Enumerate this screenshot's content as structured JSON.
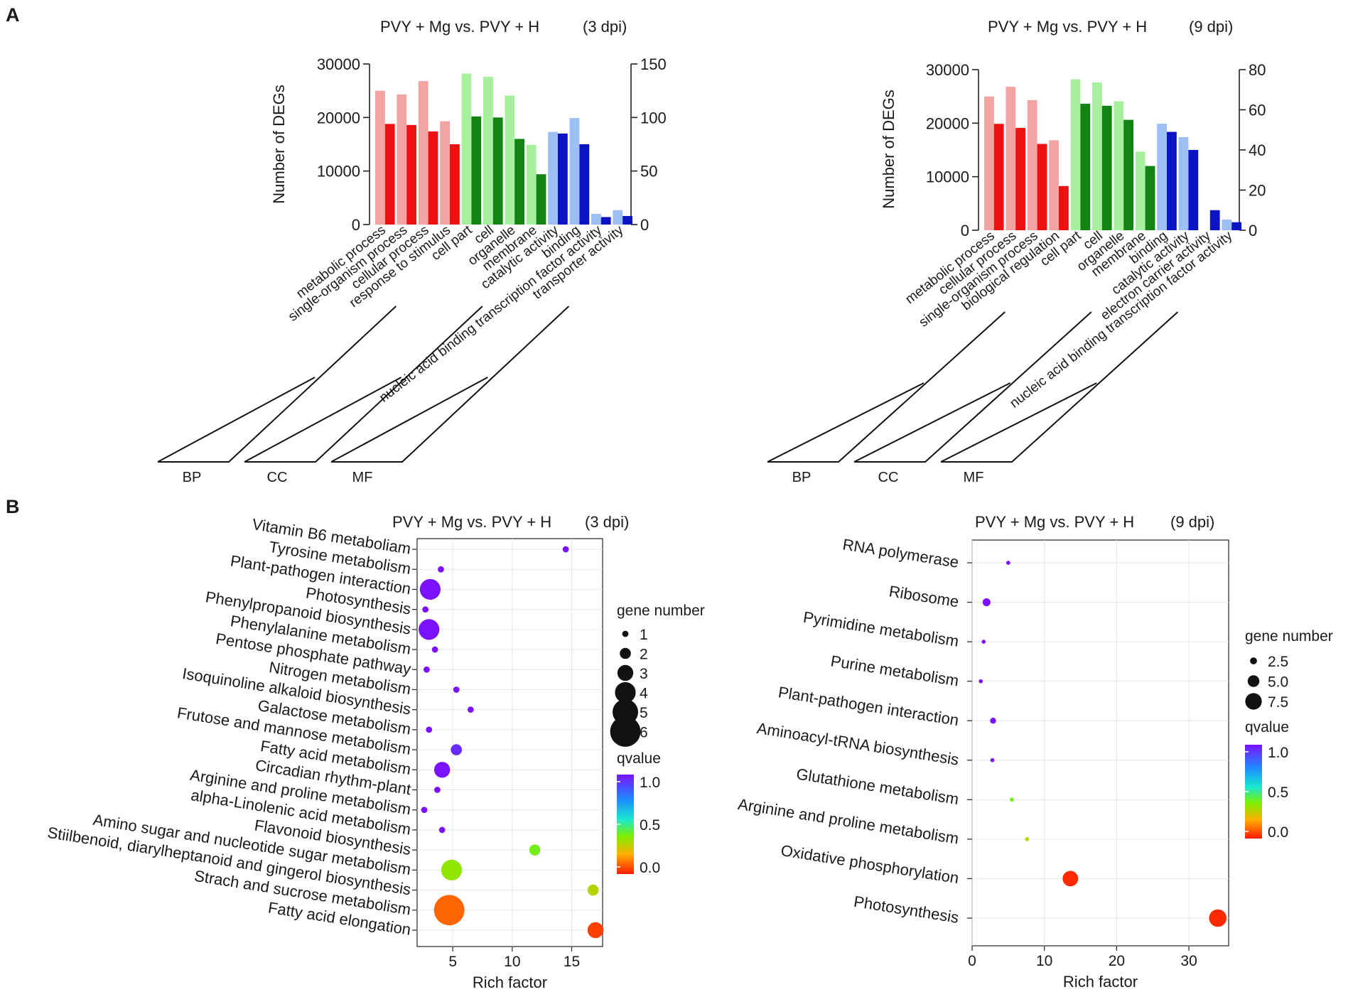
{
  "panel_labels": {
    "a": "A",
    "b": "B"
  },
  "chart_data": [
    {
      "id": "go3",
      "type": "bar",
      "title": "PVY + Mg vs. PVY + H",
      "subtitle": "(3 dpi)",
      "ylabel": "Number of DEGs",
      "ylim": [
        0,
        30000
      ],
      "yticks": [
        "0",
        "10000",
        "20000",
        "30000"
      ],
      "y2lim": [
        0,
        150
      ],
      "y2ticks": [
        "0",
        "50",
        "100",
        "150"
      ],
      "categories": [
        "metabolic process",
        "single-organism process",
        "cellular process",
        "response to stimulus",
        "cell part",
        "cell",
        "organelle",
        "membrane",
        "catalytic activity",
        "binding",
        "nucleic acid binding transcription factor activity",
        "transporter activity"
      ],
      "groups": [
        {
          "name": "BP",
          "count": 4,
          "light": "#f4a3a3",
          "dark": "#ee1111"
        },
        {
          "name": "CC",
          "count": 4,
          "light": "#a8f0a0",
          "dark": "#138313"
        },
        {
          "name": "MF",
          "count": 4,
          "light": "#9cc0f4",
          "dark": "#0b14c4"
        }
      ],
      "series": [
        {
          "name": "all genes (left axis)",
          "values": [
            25000,
            24300,
            26800,
            19300,
            28200,
            27600,
            24100,
            14900,
            17300,
            19900,
            2000,
            2700
          ]
        },
        {
          "name": "DEGs (right axis)",
          "values": [
            94,
            93,
            87,
            75,
            101,
            100,
            80,
            47,
            85,
            75,
            7,
            8
          ]
        }
      ]
    },
    {
      "id": "go9",
      "type": "bar",
      "title": "PVY + Mg vs. PVY + H",
      "subtitle": "(9 dpi)",
      "ylabel": "Number of DEGs",
      "ylim": [
        0,
        30000
      ],
      "yticks": [
        "0",
        "10000",
        "20000",
        "30000"
      ],
      "y2lim": [
        0,
        80
      ],
      "y2ticks": [
        "0",
        "20",
        "40",
        "60",
        "80"
      ],
      "categories": [
        "metabolic process",
        "cellular process",
        "single-organism process",
        "biological regulation",
        "cell part",
        "cell",
        "organelle",
        "membrane",
        "binding",
        "catalytic activity",
        "electron carrier activity",
        "nucleic acid binding transcription factor activity"
      ],
      "groups": [
        {
          "name": "BP",
          "count": 4,
          "light": "#f4a3a3",
          "dark": "#ee1111"
        },
        {
          "name": "CC",
          "count": 4,
          "light": "#a8f0a0",
          "dark": "#138313"
        },
        {
          "name": "MF",
          "count": 4,
          "light": "#9cc0f4",
          "dark": "#0b14c4"
        }
      ],
      "series": [
        {
          "name": "all genes (left axis)",
          "values": [
            25000,
            26800,
            24300,
            16800,
            28200,
            27600,
            24100,
            14700,
            19900,
            17400,
            0,
            2000
          ]
        },
        {
          "name": "DEGs (right axis)",
          "values": [
            53,
            51,
            43,
            22,
            63,
            62,
            55,
            32,
            49,
            40,
            10,
            4
          ]
        }
      ]
    },
    {
      "id": "kegg3",
      "type": "scatter",
      "title": "PVY + Mg vs. PVY + H",
      "subtitle": "(3 dpi)",
      "xlabel": "Rich factor",
      "xlim": [
        2,
        17.6
      ],
      "xticks": [
        5,
        10,
        15
      ],
      "categories": [
        "Vitamin B6 metaboliam",
        "Tyrosine metabolism",
        "Plant-pathogen interaction",
        "Photosynthesis",
        "Phenylpropanoid biosynthesis",
        "Phenylalanine metabolism",
        "Pentose phosphate pathway",
        "Nitrogen metabolism",
        "Isoquinoline alkaloid biosynthesis",
        "Galactose metabolism",
        "Frutose and mannose metabolism",
        "Fatty acid metabolism",
        "Circadian rhythm-plant",
        "Arginine and proline metabolism",
        "alpha-Linolenic acid metabolism",
        "Flavonoid biosynthesis",
        "Amino sugar and nucleotide sugar metabolism",
        "Stiilbenoid, diarylheptanoid and gingerol biosynthesis",
        "Strach and sucrose metabolism",
        "Fatty acid elongation"
      ],
      "points": [
        {
          "x": 14.5,
          "gene": 1,
          "q": 1.0
        },
        {
          "x": 4.0,
          "gene": 1,
          "q": 1.0
        },
        {
          "x": 3.1,
          "gene": 4,
          "q": 1.0
        },
        {
          "x": 2.7,
          "gene": 1,
          "q": 1.0
        },
        {
          "x": 3.0,
          "gene": 4,
          "q": 1.0
        },
        {
          "x": 3.5,
          "gene": 1,
          "q": 1.0
        },
        {
          "x": 2.8,
          "gene": 1,
          "q": 1.0
        },
        {
          "x": 5.3,
          "gene": 1,
          "q": 1.0
        },
        {
          "x": 6.5,
          "gene": 1,
          "q": 1.0
        },
        {
          "x": 3.0,
          "gene": 1,
          "q": 1.0
        },
        {
          "x": 5.3,
          "gene": 2,
          "q": 0.95
        },
        {
          "x": 4.1,
          "gene": 3,
          "q": 1.0
        },
        {
          "x": 3.7,
          "gene": 1,
          "q": 1.0
        },
        {
          "x": 2.6,
          "gene": 1,
          "q": 1.0
        },
        {
          "x": 4.1,
          "gene": 1,
          "q": 1.0
        },
        {
          "x": 11.9,
          "gene": 2,
          "q": 0.4
        },
        {
          "x": 4.9,
          "gene": 4,
          "q": 0.35
        },
        {
          "x": 16.8,
          "gene": 2,
          "q": 0.3
        },
        {
          "x": 4.7,
          "gene": 6,
          "q": 0.1
        },
        {
          "x": 17.0,
          "gene": 3,
          "q": 0.05
        }
      ],
      "size_legend": {
        "title": "gene number",
        "labels": [
          "1",
          "2",
          "3",
          "4",
          "5",
          "6"
        ],
        "values": [
          1,
          2,
          3,
          4,
          5,
          6
        ]
      },
      "color_legend": {
        "title": "qvalue",
        "ticks": [
          "1.0",
          "0.5",
          "0.0"
        ]
      }
    },
    {
      "id": "kegg9",
      "type": "scatter",
      "title": "PVY + Mg vs. PVY + H",
      "subtitle": "(9 dpi)",
      "xlabel": "Rich factor",
      "xlim": [
        0,
        35.5
      ],
      "xticks": [
        0,
        10,
        20,
        30
      ],
      "categories": [
        "RNA polymerase",
        "Ribosome",
        "Pyrimidine metabolism",
        "Purine metabolism",
        "Plant-pathogen interaction",
        "Aminoacyl-tRNA biosynthesis",
        "Glutathione metabolism",
        "Arginine and proline metabolism",
        "Oxidative phosphorylation",
        "Photosynthesis"
      ],
      "points": [
        {
          "x": 5.0,
          "gene": 1,
          "q": 1.0
        },
        {
          "x": 2.0,
          "gene": 3,
          "q": 1.0
        },
        {
          "x": 1.6,
          "gene": 1,
          "q": 1.0
        },
        {
          "x": 1.2,
          "gene": 1,
          "q": 1.0
        },
        {
          "x": 2.9,
          "gene": 2,
          "q": 1.0
        },
        {
          "x": 2.8,
          "gene": 1,
          "q": 1.0
        },
        {
          "x": 5.5,
          "gene": 1,
          "q": 0.4
        },
        {
          "x": 7.6,
          "gene": 1,
          "q": 0.3
        },
        {
          "x": 13.6,
          "gene": 7,
          "q": 0.02
        },
        {
          "x": 34.0,
          "gene": 8,
          "q": 0.02
        }
      ],
      "size_legend": {
        "title": "gene number",
        "labels": [
          "2.5",
          "5.0",
          "7.5"
        ],
        "values": [
          2.5,
          5.0,
          7.5
        ]
      },
      "color_legend": {
        "title": "qvalue",
        "ticks": [
          "1.0",
          "0.5",
          "0.0"
        ]
      }
    }
  ]
}
